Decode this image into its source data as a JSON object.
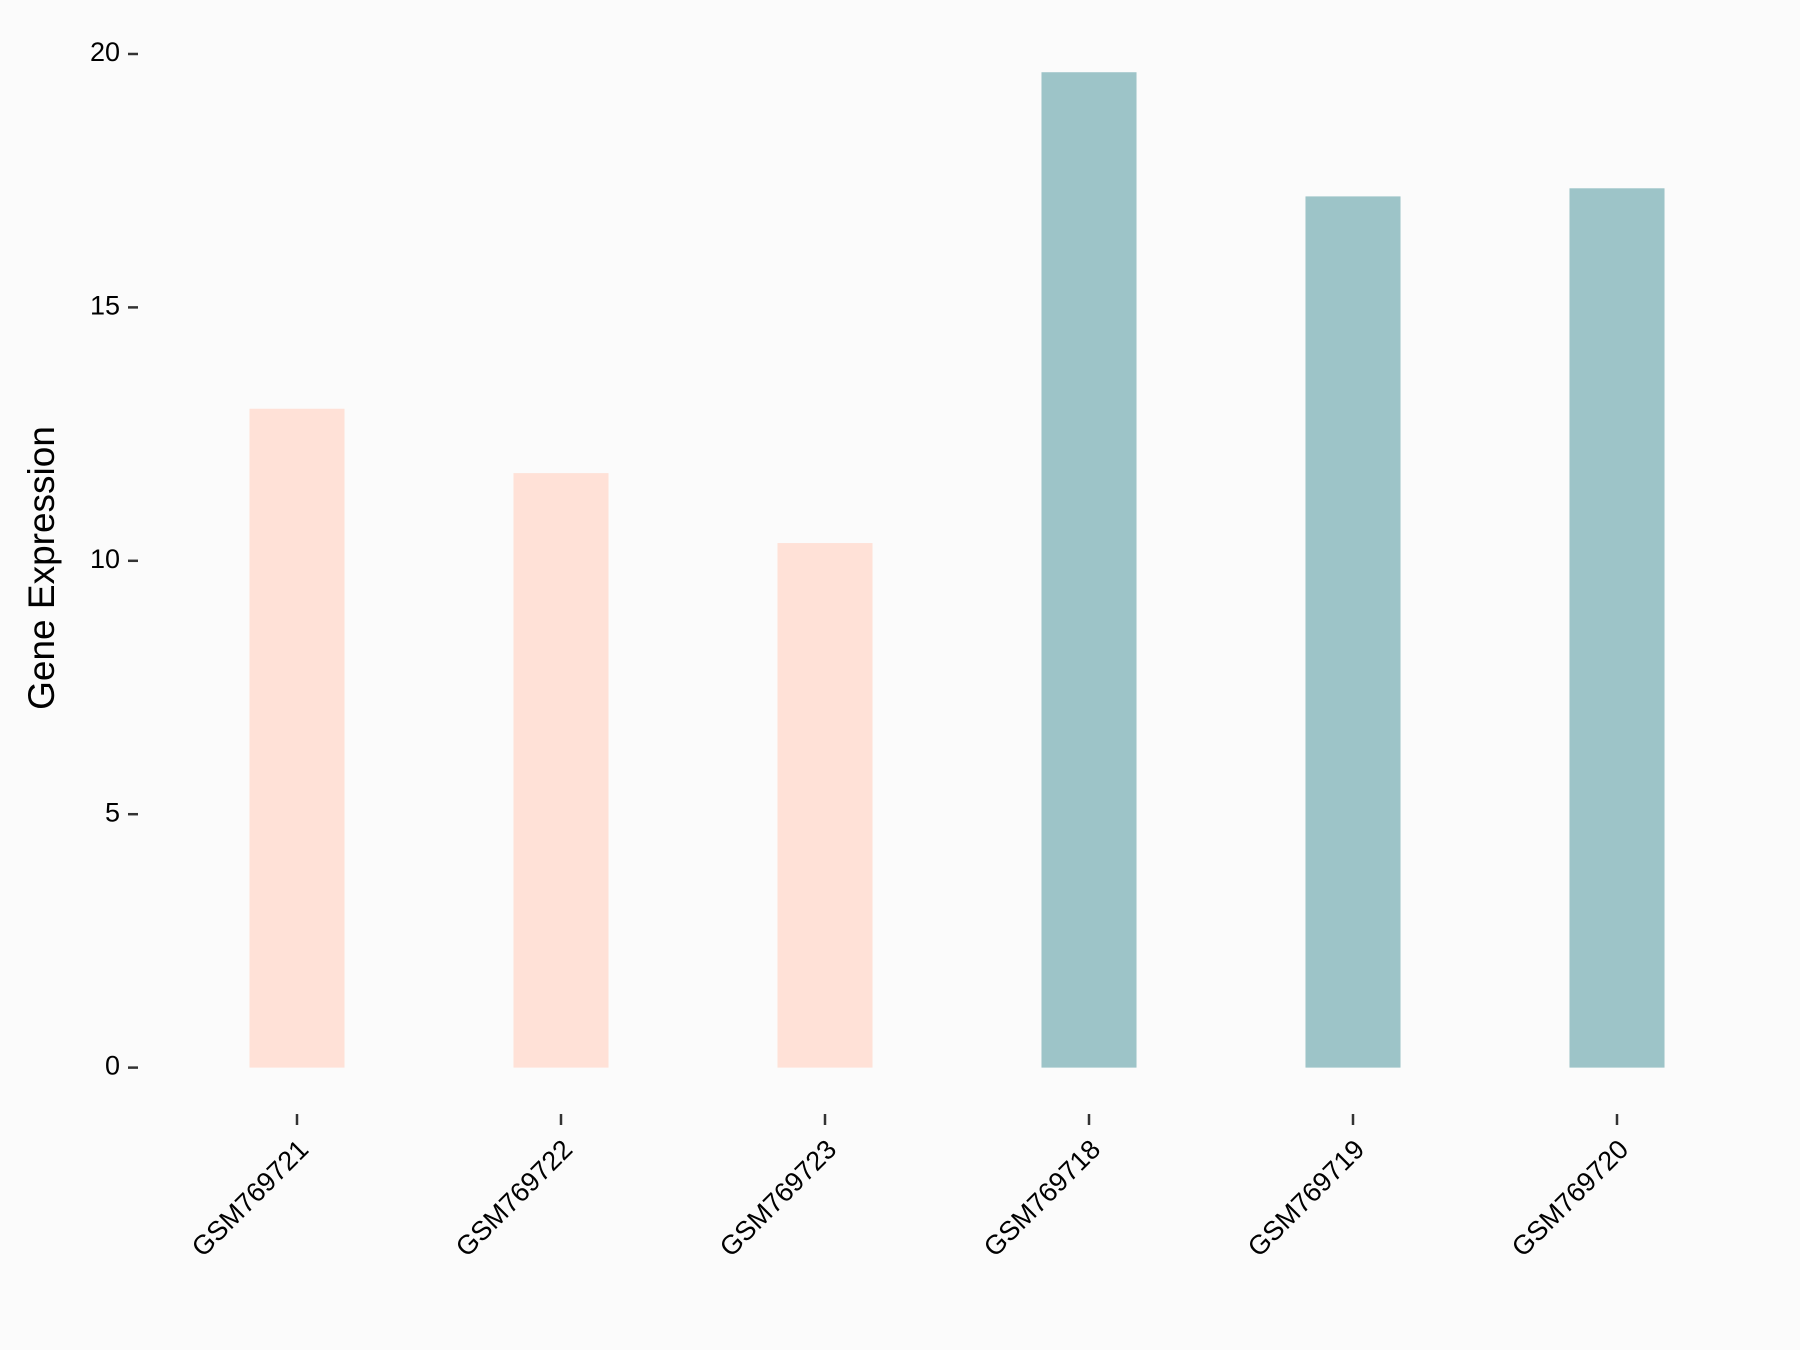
{
  "chart_data": {
    "type": "bar",
    "y_label": "Gene Expression",
    "categories": [
      "GSM769721",
      "GSM769722",
      "GSM769723",
      "GSM769718",
      "GSM769719",
      "GSM769720"
    ],
    "values": [
      13.0,
      11.73,
      10.35,
      19.64,
      17.19,
      17.35
    ],
    "colors": [
      "#ffe1d7",
      "#ffe1d7",
      "#ffe1d7",
      "#9dc4c8",
      "#9dc4c8",
      "#9dc4c8"
    ],
    "ylim": [
      -1,
      21
    ],
    "yticks": [
      0,
      5,
      10,
      15,
      20
    ],
    "grid": false
  }
}
